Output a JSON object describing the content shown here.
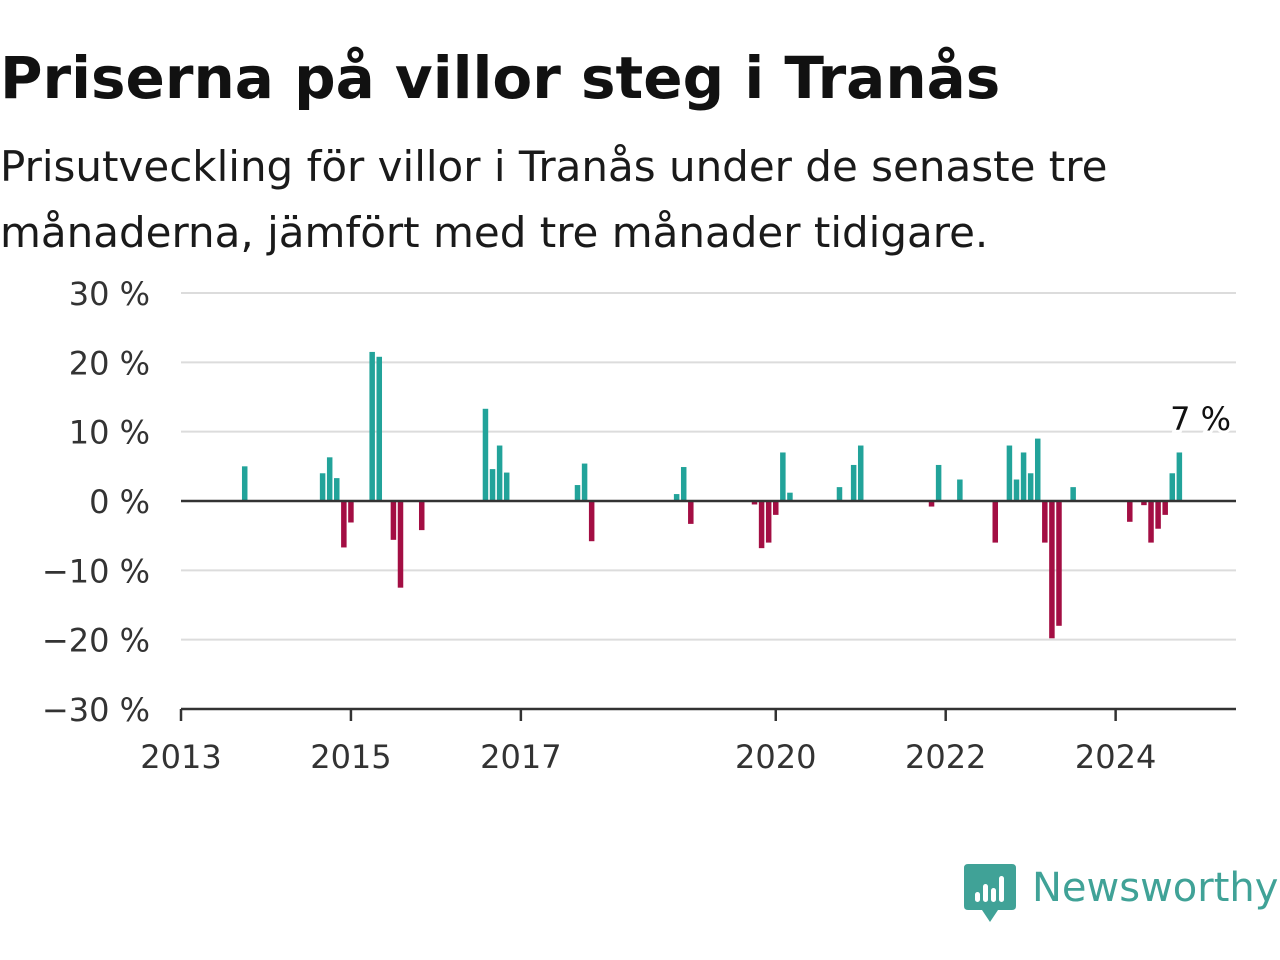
{
  "header": {
    "title": "Priserna på villor steg i Tranås",
    "subtitle": "Prisutveckling för villor i Tranås under de senaste tre månaderna, jämfört med tre månader tidigare."
  },
  "brand": {
    "name": "Newsworthy",
    "color": "#40a297",
    "icon": "newsworthy-logo-icon"
  },
  "chart_data": {
    "type": "bar",
    "x_axis": {
      "type": "date",
      "range": [
        "2013-01",
        "2025-06"
      ],
      "tick_labels": [
        "2013",
        "2015",
        "2017",
        "2020",
        "2022",
        "2024"
      ]
    },
    "y_axis": {
      "range": [
        -30,
        30
      ],
      "unit": "%",
      "tick_values": [
        30,
        20,
        10,
        0,
        -10,
        -20,
        -30
      ],
      "tick_labels": [
        "30 %",
        "20 %",
        "10 %",
        "0 %",
        "−10 %",
        "−20 %",
        "−30 %"
      ]
    },
    "grid": true,
    "colors": {
      "positive": "#22a39a",
      "negative": "#a30e43"
    },
    "annotation": {
      "text": "7 %",
      "date": "2025-01"
    },
    "points": [
      {
        "date": "2013-10",
        "value": 5
      },
      {
        "date": "2014-09",
        "value": 4
      },
      {
        "date": "2014-10",
        "value": 6.3
      },
      {
        "date": "2014-11",
        "value": 3.3
      },
      {
        "date": "2014-12",
        "value": -6.7
      },
      {
        "date": "2015-01",
        "value": -3.1
      },
      {
        "date": "2015-04",
        "value": 21.5
      },
      {
        "date": "2015-05",
        "value": 20.8
      },
      {
        "date": "2015-07",
        "value": -5.6
      },
      {
        "date": "2015-08",
        "value": -12.5
      },
      {
        "date": "2015-11",
        "value": -4.2
      },
      {
        "date": "2016-08",
        "value": 13.3
      },
      {
        "date": "2016-09",
        "value": 4.6
      },
      {
        "date": "2016-10",
        "value": 8
      },
      {
        "date": "2016-11",
        "value": 4.1
      },
      {
        "date": "2017-09",
        "value": 2.3
      },
      {
        "date": "2017-10",
        "value": 5.4
      },
      {
        "date": "2017-11",
        "value": -5.8
      },
      {
        "date": "2018-11",
        "value": 1
      },
      {
        "date": "2018-12",
        "value": 4.9
      },
      {
        "date": "2019-01",
        "value": -3.3
      },
      {
        "date": "2019-10",
        "value": -0.5
      },
      {
        "date": "2019-11",
        "value": -6.8
      },
      {
        "date": "2019-12",
        "value": -6
      },
      {
        "date": "2020-01",
        "value": -2
      },
      {
        "date": "2020-02",
        "value": 7
      },
      {
        "date": "2020-03",
        "value": 1.2
      },
      {
        "date": "2020-10",
        "value": 2
      },
      {
        "date": "2020-12",
        "value": 5.2
      },
      {
        "date": "2021-01",
        "value": 8
      },
      {
        "date": "2021-11",
        "value": -0.8
      },
      {
        "date": "2021-12",
        "value": 5.2
      },
      {
        "date": "2022-03",
        "value": 3.1
      },
      {
        "date": "2022-08",
        "value": -6
      },
      {
        "date": "2022-10",
        "value": 8
      },
      {
        "date": "2022-11",
        "value": 3.1
      },
      {
        "date": "2022-12",
        "value": 7
      },
      {
        "date": "2023-01",
        "value": 4
      },
      {
        "date": "2023-02",
        "value": 9
      },
      {
        "date": "2023-03",
        "value": -6
      },
      {
        "date": "2023-04",
        "value": -19.8
      },
      {
        "date": "2023-05",
        "value": -18
      },
      {
        "date": "2023-07",
        "value": 2
      },
      {
        "date": "2024-03",
        "value": -3
      },
      {
        "date": "2024-05",
        "value": -0.6
      },
      {
        "date": "2024-06",
        "value": -6
      },
      {
        "date": "2024-07",
        "value": -4
      },
      {
        "date": "2024-08",
        "value": -2
      },
      {
        "date": "2024-09",
        "value": 4
      },
      {
        "date": "2024-10",
        "value": 7
      }
    ]
  }
}
